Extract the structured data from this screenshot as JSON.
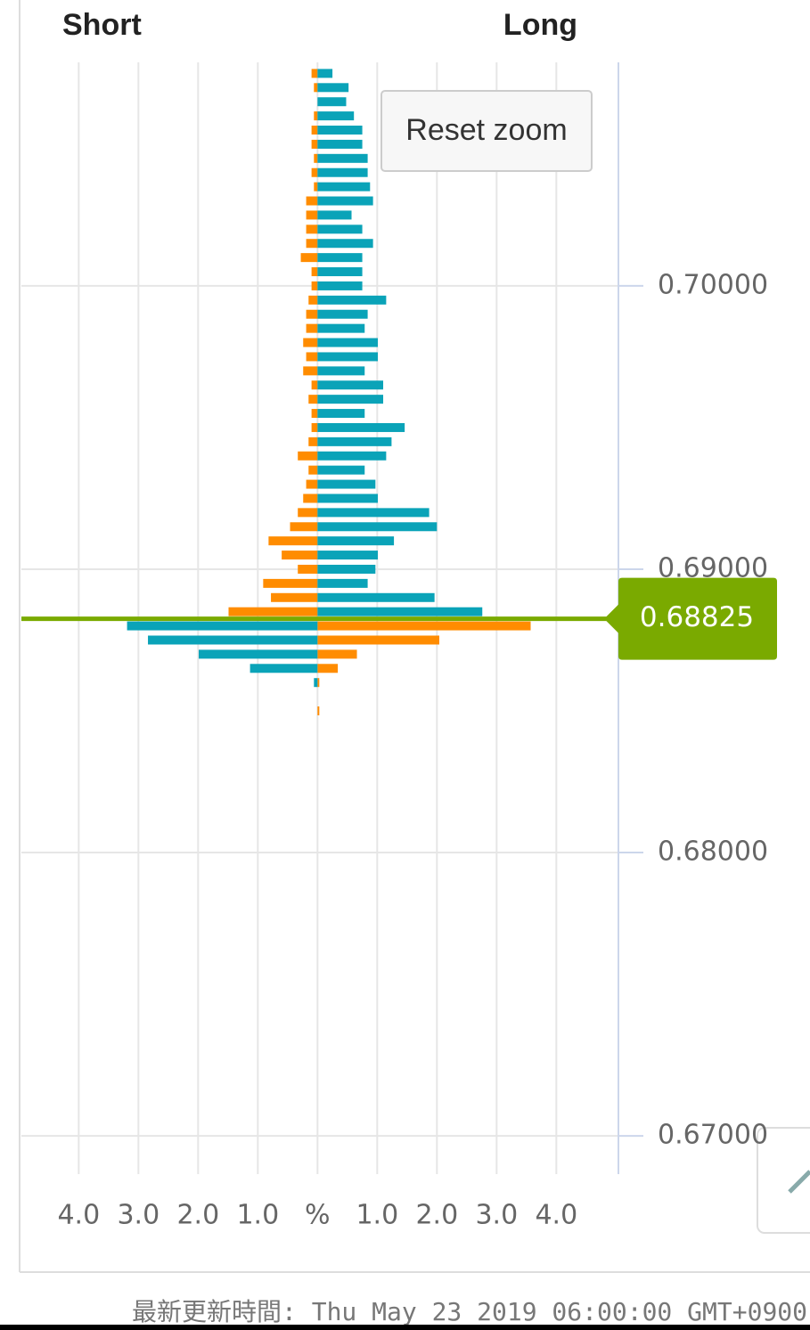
{
  "chart_data": {
    "type": "bar",
    "left_label": "Short",
    "right_label": "Long",
    "prices": [
      0.7075,
      0.707,
      0.7065,
      0.706,
      0.7055,
      0.705,
      0.7045,
      0.704,
      0.7035,
      0.703,
      0.7025,
      0.702,
      0.7015,
      0.701,
      0.7005,
      0.7,
      0.6995,
      0.699,
      0.6985,
      0.698,
      0.6975,
      0.697,
      0.6965,
      0.696,
      0.6955,
      0.695,
      0.6945,
      0.694,
      0.6935,
      0.693,
      0.6925,
      0.692,
      0.6915,
      0.691,
      0.6905,
      0.69,
      0.6895,
      0.689,
      0.6885,
      0.688,
      0.6875,
      0.687,
      0.6865,
      0.686,
      0.6855,
      0.685
    ],
    "series": [
      {
        "color": "#ff8c00",
        "values": [
          -0.1,
          -0.06,
          0,
          -0.06,
          -0.1,
          -0.1,
          -0.06,
          -0.1,
          -0.06,
          -0.19,
          -0.19,
          -0.19,
          -0.19,
          -0.28,
          -0.1,
          -0.1,
          -0.15,
          -0.19,
          -0.19,
          -0.24,
          -0.19,
          -0.24,
          -0.1,
          -0.15,
          -0.1,
          -0.1,
          -0.15,
          -0.33,
          -0.15,
          -0.19,
          -0.24,
          -0.33,
          -0.46,
          -0.82,
          -0.6,
          -0.33,
          -0.91,
          -0.78,
          -1.49,
          3.57,
          2.04,
          0.66,
          0.34,
          0.03,
          0,
          0.03
        ]
      },
      {
        "color": "#0aa3b8",
        "values": [
          0.25,
          0.52,
          0.48,
          0.61,
          0.75,
          0.75,
          0.84,
          0.84,
          0.88,
          0.93,
          0.57,
          0.75,
          0.93,
          0.75,
          0.75,
          0.75,
          1.15,
          0.84,
          0.79,
          1.01,
          1.01,
          0.79,
          1.1,
          1.1,
          0.79,
          1.46,
          1.24,
          1.15,
          0.79,
          0.97,
          1.01,
          1.87,
          2.0,
          1.28,
          1.01,
          0.97,
          0.84,
          1.96,
          2.76,
          -3.19,
          -2.84,
          -1.99,
          -1.13,
          -0.06,
          0,
          0
        ]
      }
    ],
    "xlim": [
      -4.96,
      5.04
    ],
    "xticks": [
      {
        "value": -4,
        "label": "4.0"
      },
      {
        "value": -3,
        "label": "3.0"
      },
      {
        "value": -2,
        "label": "2.0"
      },
      {
        "value": -1,
        "label": "1.0"
      },
      {
        "value": 0,
        "label": "%"
      },
      {
        "value": 1,
        "label": "1.0"
      },
      {
        "value": 2,
        "label": "2.0"
      },
      {
        "value": 3,
        "label": "3.0"
      },
      {
        "value": 4,
        "label": "4.0"
      }
    ],
    "ylim": [
      0.66865,
      0.70789
    ],
    "yticks": [
      {
        "value": 0.7,
        "label": "0.70000"
      },
      {
        "value": 0.69,
        "label": "0.69000"
      },
      {
        "value": 0.68,
        "label": "0.68000"
      },
      {
        "value": 0.67,
        "label": "0.67000"
      }
    ],
    "current_price": 0.68825,
    "current_price_color": "#7aaa00",
    "grid": true,
    "reset_button": "Reset zoom",
    "footer": "最新更新時間: Thu May 23 2019 06:00:00 GMT+0900"
  }
}
